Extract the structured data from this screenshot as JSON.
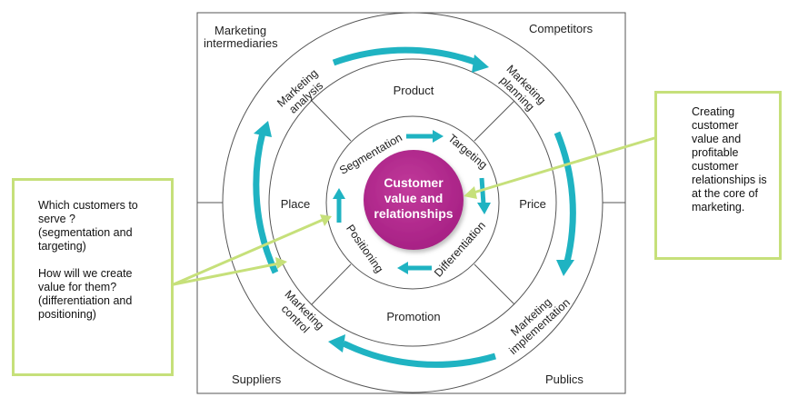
{
  "corners": {
    "top_left": [
      "Marketing",
      "intermediaries"
    ],
    "top_right": "Competitors",
    "bottom_left": "Suppliers",
    "bottom_right": "Publics"
  },
  "outer_ring": {
    "analysis": [
      "Marketing",
      "analysis"
    ],
    "planning": [
      "Marketing",
      "planning"
    ],
    "implementation": [
      "Marketing",
      "implementation"
    ],
    "control": [
      "Marketing",
      "control"
    ]
  },
  "mix": {
    "product": "Product",
    "price": "Price",
    "promotion": "Promotion",
    "place": "Place"
  },
  "inner_ring": {
    "segmentation": "Segmentation",
    "targeting": "Targeting",
    "differentiation": "Differentiation",
    "positioning": "Positioning"
  },
  "center": [
    "Customer",
    "value and",
    "relationships"
  ],
  "left_callout": {
    "question1": "Which customers to\nserve ?\n(segmentation  and\ntargeting)",
    "question2": "How will we create\nvalue for them?\n(differentiation and\npositioning)"
  },
  "right_callout": {
    "text": "Creating\ncustomer\nvalue and\nprofitable\ncustomer\nrelationships is\nat the core of\nmarketing."
  },
  "colors": {
    "teal_arrow": "#1fb3c2",
    "center_fill": "#b8268f",
    "callout_border": "#c6e07a",
    "line": "#555555"
  }
}
